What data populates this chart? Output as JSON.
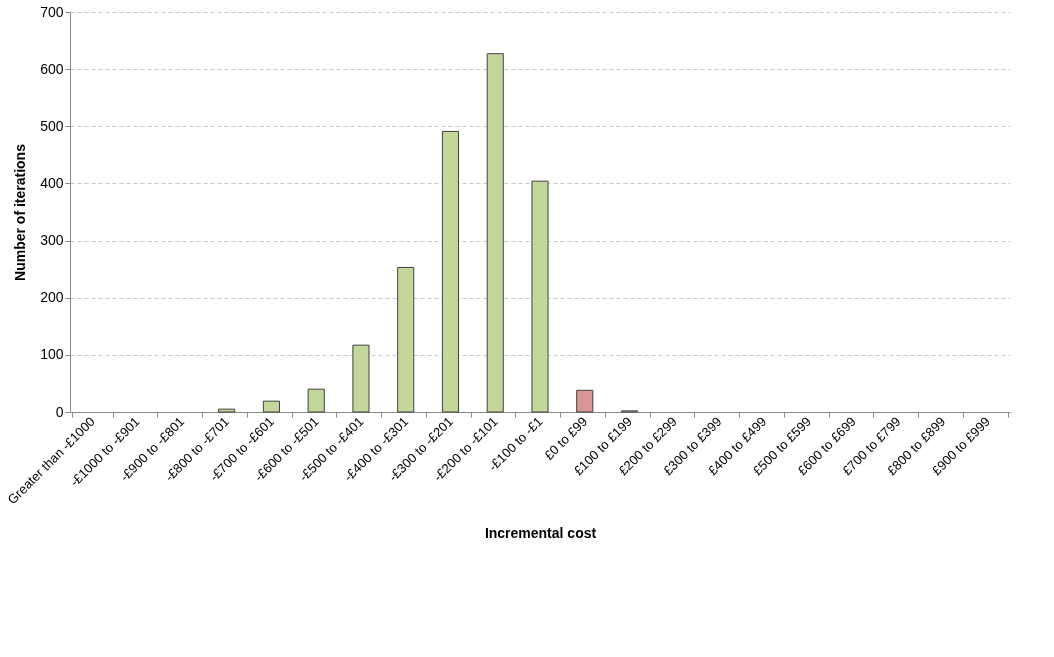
{
  "chart_data": {
    "type": "bar",
    "xlabel": "Incremental cost",
    "ylabel": "Number of iterations",
    "categories": [
      "Greater than -£1000",
      "-£1000 to -£901",
      "-£900 to -£801",
      "-£800 to -£701",
      "-£700 to -£601",
      "-£600 to -£501",
      "-£500 to -£401",
      "-£400 to -£301",
      "-£300 to -£201",
      "-£200 to -£101",
      "-£100 to -£1",
      "£0 to £99",
      "£100 to £199",
      "£200 to £299",
      "£300 to £399",
      "£400 to £499",
      "£500 to £599",
      "£600 to £699",
      "£700 to £799",
      "£800 to £899",
      "£900 to £999"
    ],
    "values": [
      0,
      0,
      0,
      5,
      19,
      40,
      117,
      253,
      491,
      627,
      404,
      38,
      2,
      0,
      0,
      0,
      0,
      0,
      0,
      0,
      0
    ],
    "colors": [
      "#c4d79b",
      "#c4d79b",
      "#c4d79b",
      "#c4d79b",
      "#c4d79b",
      "#c4d79b",
      "#c4d79b",
      "#c4d79b",
      "#c4d79b",
      "#c4d79b",
      "#c4d79b",
      "#da9694",
      "#c4d79b",
      "#c4d79b",
      "#c4d79b",
      "#c4d79b",
      "#c4d79b",
      "#c4d79b",
      "#c4d79b",
      "#c4d79b",
      "#c4d79b"
    ],
    "ylim": [
      0,
      700
    ],
    "yticks": [
      0,
      100,
      200,
      300,
      400,
      500,
      600,
      700
    ],
    "grid": "y"
  }
}
